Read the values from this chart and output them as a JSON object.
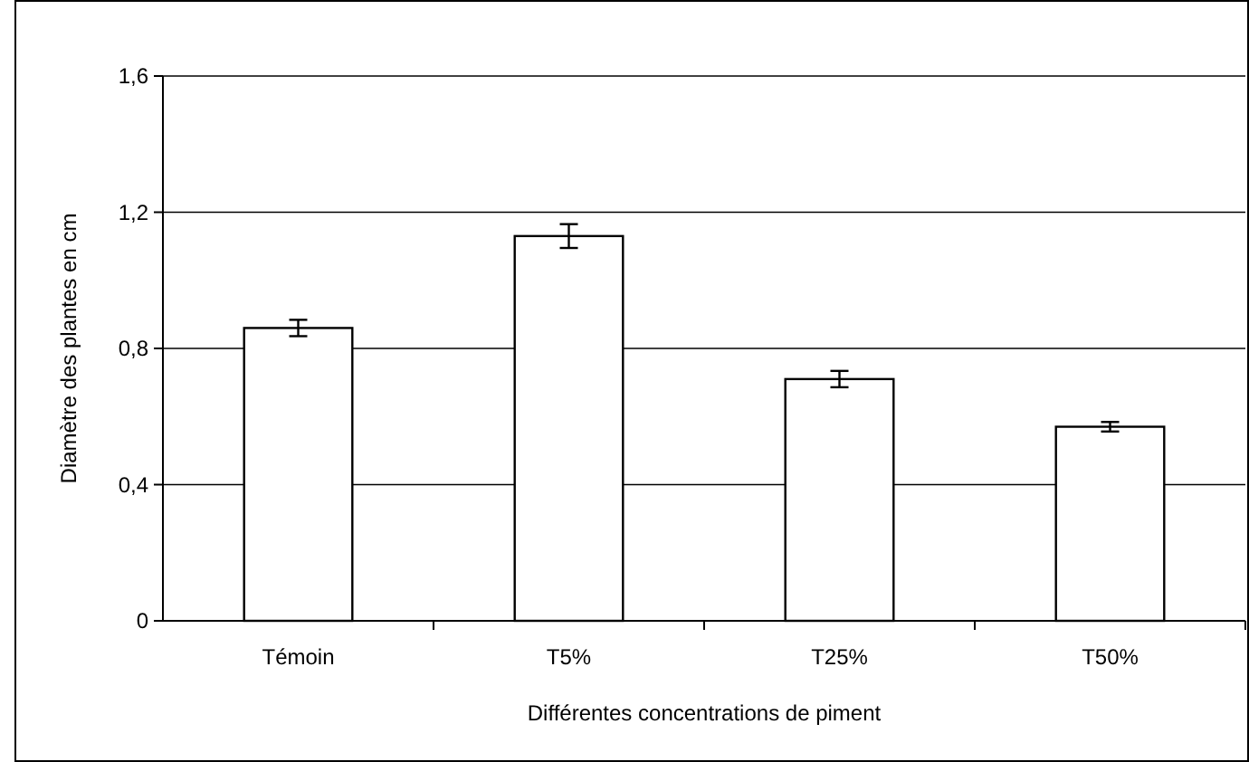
{
  "chart_data": {
    "type": "bar",
    "xlabel": "Différentes concentrations de piment",
    "ylabel": "Diamètre des plantes en cm",
    "categories": [
      "Témoin",
      "T5%",
      "T25%",
      "T50%"
    ],
    "values": [
      0.86,
      1.13,
      0.71,
      0.57
    ],
    "errors": [
      0.024,
      0.035,
      0.024,
      0.014
    ],
    "color": "#ffffff",
    "ylim": [
      0,
      1.6
    ],
    "yticks": [
      {
        "value": 0,
        "label": "0"
      },
      {
        "value": 0.4,
        "label": "0,4"
      },
      {
        "value": 0.8,
        "label": "0,8"
      },
      {
        "value": 1.2,
        "label": "1,2"
      },
      {
        "value": 1.6,
        "label": "1,6"
      }
    ],
    "grid": "y"
  }
}
